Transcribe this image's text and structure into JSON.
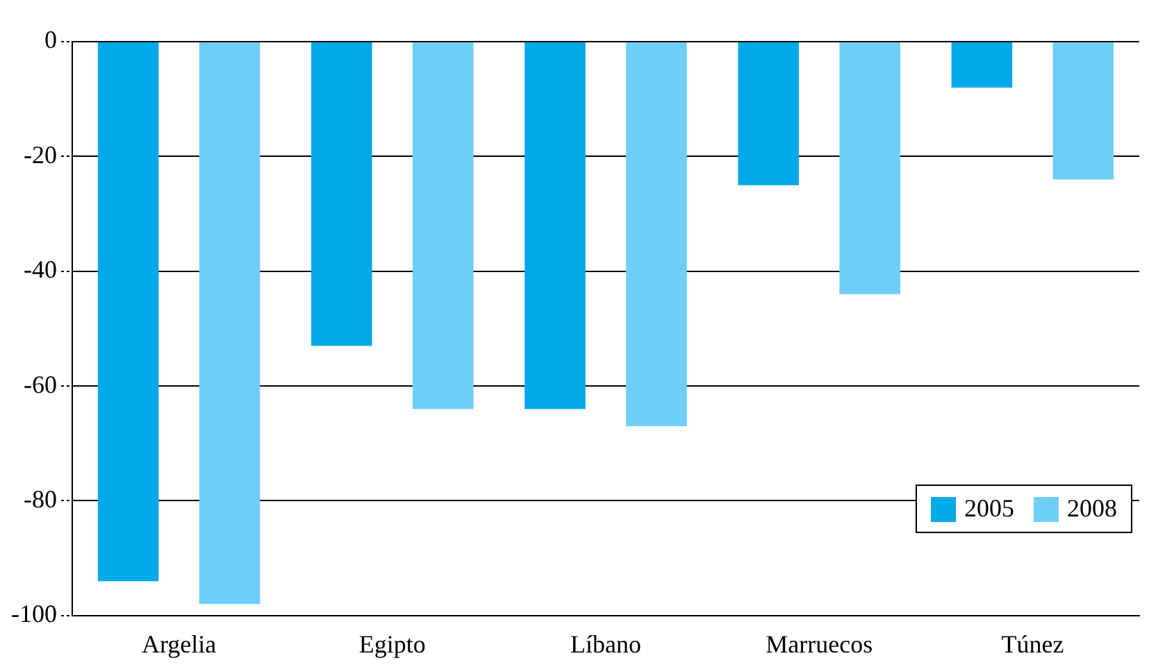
{
  "chart_data": {
    "type": "bar",
    "categories": [
      "Argelia",
      "Egipto",
      "Líbano",
      "Marruecos",
      "Túnez"
    ],
    "series": [
      {
        "name": "2005",
        "color": "#00a9e8",
        "values": [
          -94,
          -53,
          -64,
          -25,
          -8
        ]
      },
      {
        "name": "2008",
        "color": "#6dcff6",
        "values": [
          -98,
          -64,
          -67,
          -44,
          -24
        ]
      }
    ],
    "ylim": [
      -100,
      0
    ],
    "yticks": [
      -100,
      -80,
      -60,
      -40,
      -20,
      0
    ],
    "grid": "y",
    "legend": "bottom right"
  }
}
